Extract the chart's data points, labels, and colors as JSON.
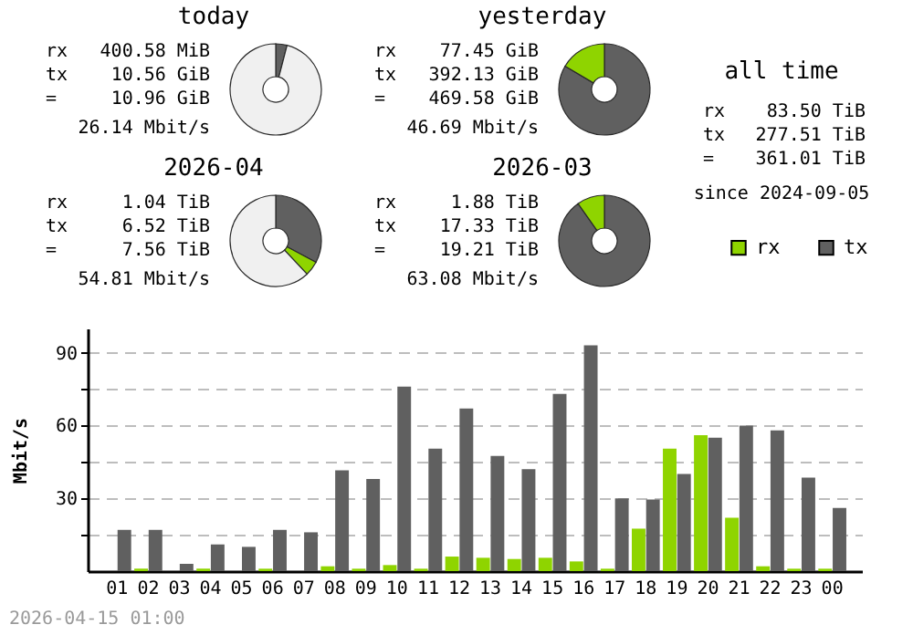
{
  "chart_data": [
    {
      "type": "donut",
      "title": "today",
      "categories": [
        null,
        null
      ],
      "values": [
        4,
        96
      ],
      "colors": [
        "#606060",
        "#f0f0f0"
      ],
      "annotations": [
        "rx",
        "400.58 MiB",
        "tx",
        "10.56 GiB",
        "=",
        "10.96 GiB",
        "26.14 Mbit/s"
      ]
    },
    {
      "type": "donut",
      "title": "yesterday",
      "categories": [
        null,
        null
      ],
      "values": [
        83.5,
        16.5
      ],
      "colors": [
        "#606060",
        "#8fd400"
      ],
      "annotations": [
        "rx",
        "77.45 GiB",
        "tx",
        "392.13 GiB",
        "=",
        "469.58 GiB",
        "46.69 Mbit/s"
      ]
    },
    {
      "type": "other",
      "title": "all time",
      "annotations": [
        "rx",
        "83.50 TiB",
        "tx",
        "277.51 TiB",
        "=",
        "361.01 TiB",
        "since 2024-09-05"
      ]
    },
    {
      "type": "donut",
      "title": "2026-04",
      "categories": [
        null,
        null,
        null
      ],
      "values": [
        32.8,
        5.2,
        62
      ],
      "colors": [
        "#606060",
        "#8fd400",
        "#f0f0f0"
      ],
      "annotations": [
        "rx",
        "1.04 TiB",
        "tx",
        "6.52 TiB",
        "=",
        "7.56 TiB",
        "54.81 Mbit/s"
      ]
    },
    {
      "type": "donut",
      "title": "2026-03",
      "categories": [
        null,
        null
      ],
      "values": [
        90.2,
        9.8
      ],
      "colors": [
        "#606060",
        "#8fd400"
      ],
      "annotations": [
        "rx",
        "1.88 TiB",
        "tx",
        "17.33 TiB",
        "=",
        "19.21 TiB",
        "63.08 Mbit/s"
      ]
    },
    {
      "type": "bar",
      "ylabel": "Mbit/s",
      "categories": [
        "01",
        "02",
        "03",
        "04",
        "05",
        "06",
        "07",
        "08",
        "09",
        "10",
        "11",
        "12",
        "13",
        "14",
        "15",
        "16",
        "17",
        "18",
        "19",
        "20",
        "21",
        "22",
        "23",
        "00"
      ],
      "series": [
        {
          "name": "rx",
          "color": "#8fd400",
          "values": [
            0,
            1,
            0,
            1,
            0,
            1,
            0,
            2,
            1,
            2.5,
            1,
            6,
            5.5,
            5,
            5.5,
            4,
            1,
            17.5,
            50.5,
            56,
            22,
            2,
            1,
            1
          ]
        },
        {
          "name": "tx",
          "color": "#606060",
          "values": [
            17,
            17,
            3,
            11,
            10,
            17,
            16,
            41.5,
            38,
            76,
            50.5,
            67,
            47.5,
            42,
            73,
            93,
            30,
            29.5,
            40,
            55,
            60,
            58,
            38.5,
            26
          ]
        }
      ],
      "ylim": [
        0,
        100
      ],
      "yticks": [
        {
          "value": 15,
          "label": null
        },
        30,
        {
          "value": 45,
          "label": null
        },
        60,
        {
          "value": 75,
          "label": null
        },
        90
      ],
      "grid": "y",
      "legend": "top right",
      "annotations": [
        "2026-04-15 01:00"
      ]
    }
  ]
}
